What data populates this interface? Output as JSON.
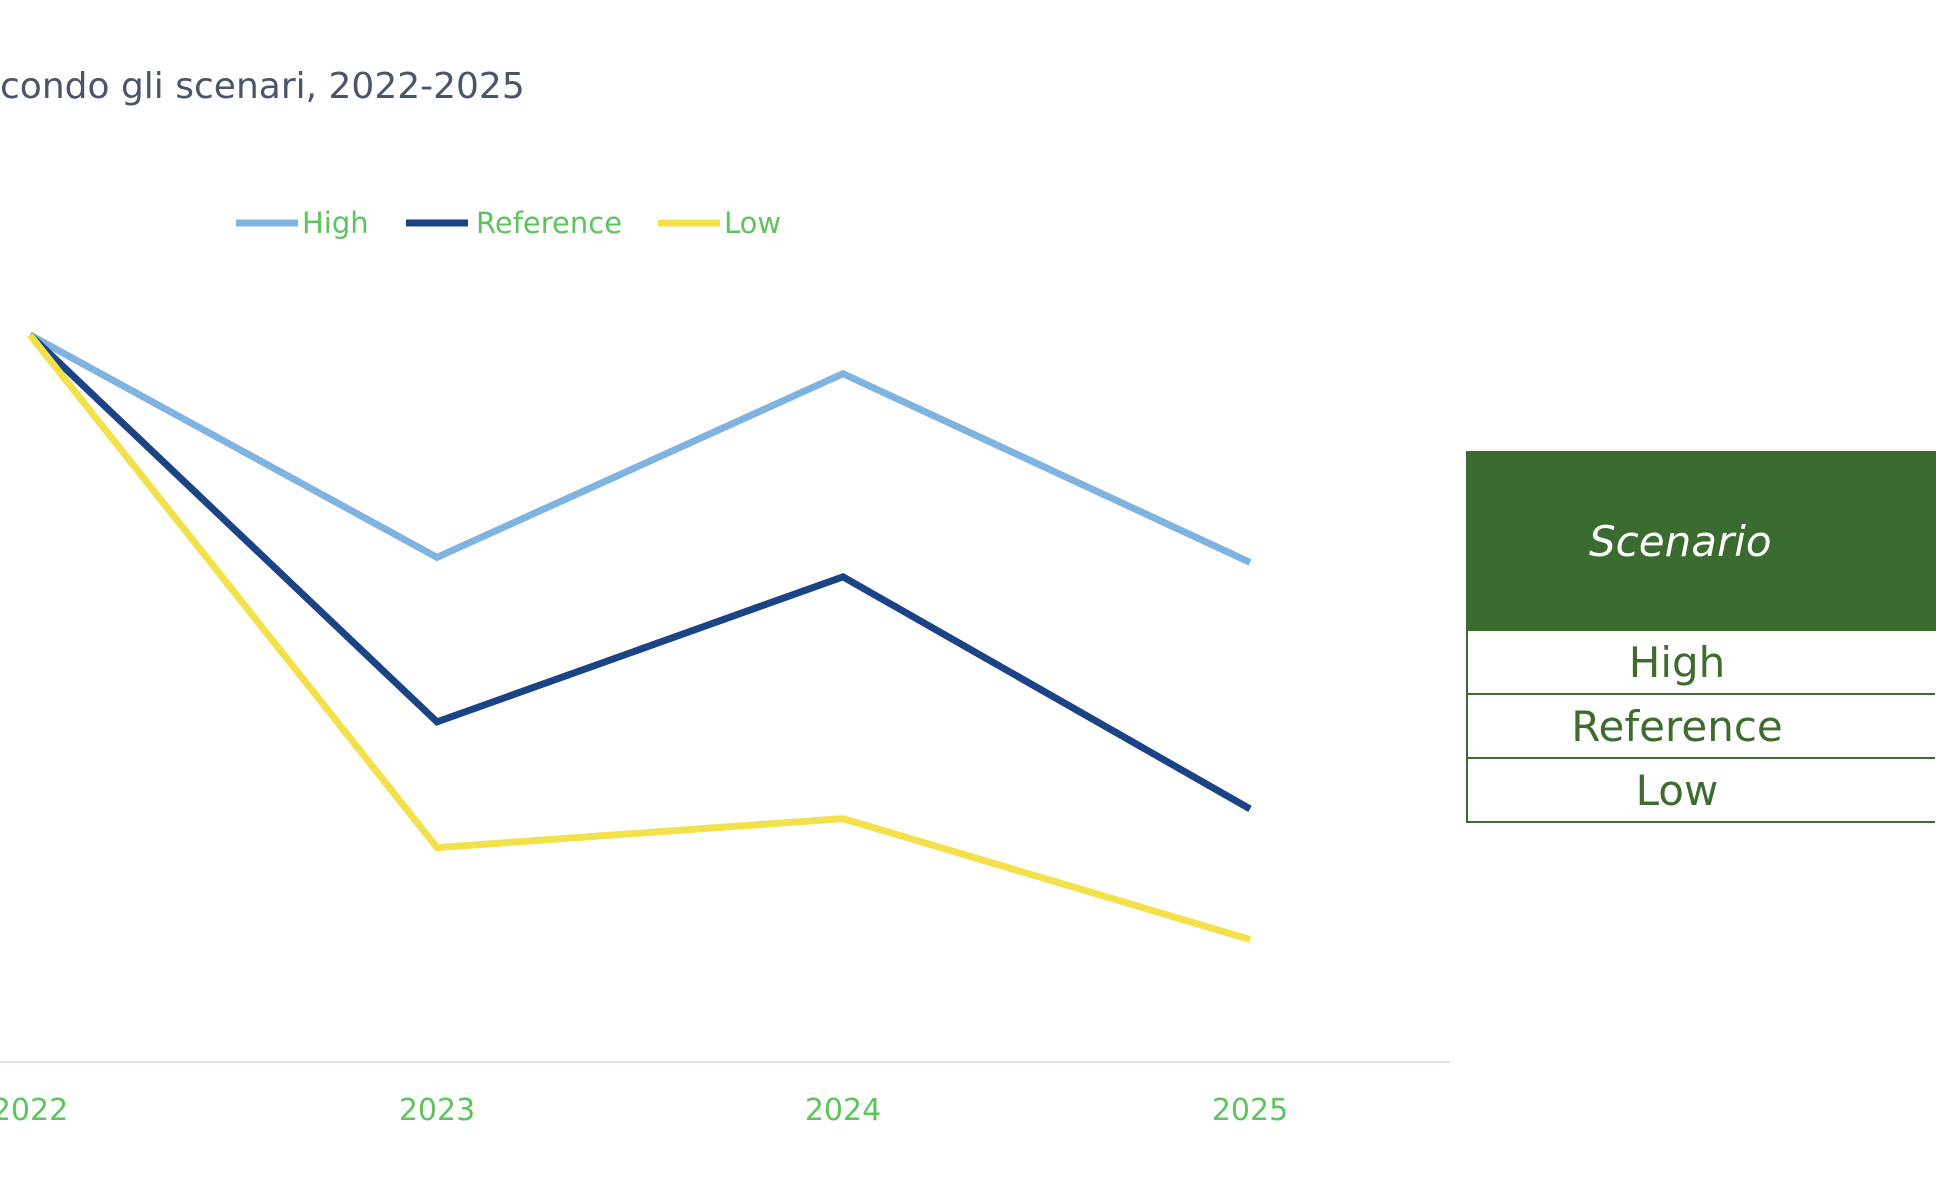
{
  "title": "condo gli scenari,  2022-2025",
  "chart_data": {
    "type": "line",
    "x": [
      "2022",
      "2023",
      "2024",
      "2025"
    ],
    "series": [
      {
        "name": "High",
        "values": [
          100,
          77,
          96,
          76.5
        ],
        "color": "#7fb3e0"
      },
      {
        "name": "Reference",
        "values": [
          100,
          60,
          75,
          51
        ],
        "color": "#1b4486"
      },
      {
        "name": "Low",
        "values": [
          100,
          47,
          50,
          37.5
        ],
        "color": "#f2e14a"
      }
    ],
    "legend": {
      "placement": "top-left",
      "label_color": "#5cc45c"
    },
    "tick_label_color": "#5cc45c",
    "axis_line_color": "#d8ecd8",
    "grid": false,
    "y_axis_shown": false
  },
  "table": {
    "header": "Scenario",
    "rows": [
      "High",
      "Reference",
      "Low"
    ],
    "header_bg": "#3a6b2f",
    "text_color": "#3e6b2f"
  }
}
